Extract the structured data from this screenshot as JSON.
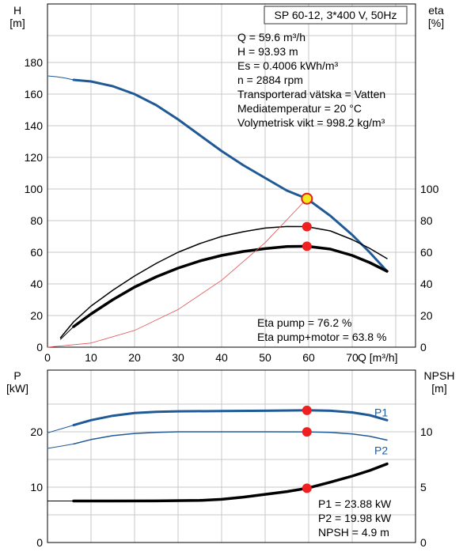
{
  "chart_data": [
    {
      "type": "line",
      "title": "SP 60-12, 3*400 V, 50Hz",
      "xlabel": "Q [m³/h]",
      "ylabel_left": [
        "H",
        "[m]"
      ],
      "ylabel_right": [
        "eta",
        "[%]"
      ],
      "xlim": [
        0,
        80
      ],
      "ylim_left": [
        0,
        200
      ],
      "ylim_right": [
        0,
        200
      ],
      "xticks": [
        0,
        10,
        20,
        30,
        40,
        50,
        60,
        70
      ],
      "xtick_labels": [
        "0",
        "10",
        "20",
        "30",
        "40",
        "50",
        "60",
        "70"
      ],
      "xlabel_tick": "Q [m³/h]",
      "yticks_left": [
        0,
        20,
        40,
        60,
        80,
        100,
        120,
        140,
        160,
        180
      ],
      "yticks_right": [
        0,
        20,
        40,
        60,
        80,
        100
      ],
      "grid": true,
      "info_lines": [
        "Q = 59.6 m³/h",
        "H = 93.93 m",
        "Es = 0.4006 kWh/m³",
        "n = 2884 rpm",
        "Transporterad vätska = Vatten",
        "Mediatemperatur = 20 °C",
        "Volymetrisk vikt = 998.2 kg/m³"
      ],
      "result_lines": [
        "Eta pump = 76.2 %",
        "Eta pump+motor = 63.8 %"
      ],
      "series": [
        {
          "key": "H",
          "color": "#1f5a96",
          "width": 3,
          "axis": "left",
          "x": [
            6,
            10,
            15,
            20,
            25,
            30,
            35,
            40,
            45,
            50,
            55,
            59.6,
            65,
            70,
            74,
            78
          ],
          "y": [
            169,
            168,
            165,
            160,
            153,
            144,
            134,
            124,
            115,
            107,
            99,
            93.9,
            83,
            71,
            60,
            48
          ]
        },
        {
          "key": "H-ext",
          "color": "#1f5a96",
          "width": 1,
          "axis": "left",
          "x": [
            0,
            2,
            4,
            6
          ],
          "y": [
            171.5,
            171,
            170.2,
            169
          ]
        },
        {
          "key": "eta-pump",
          "color": "#000000",
          "width": 1.5,
          "axis": "right",
          "x": [
            3,
            6,
            10,
            15,
            20,
            25,
            30,
            35,
            40,
            45,
            50,
            55,
            59.6,
            65,
            70,
            74,
            78
          ],
          "y": [
            6,
            16,
            26,
            36,
            45,
            53,
            60,
            65.5,
            70,
            73,
            75.3,
            76.3,
            76.2,
            73.5,
            68,
            62.5,
            56
          ]
        },
        {
          "key": "eta-pump-motor",
          "color": "#000000",
          "width": 3.5,
          "axis": "right",
          "x": [
            6,
            10,
            15,
            20,
            25,
            30,
            35,
            40,
            45,
            50,
            55,
            59.6,
            65,
            70,
            74,
            78
          ],
          "y": [
            13,
            21,
            30,
            38,
            44.5,
            50,
            54.5,
            58,
            60.5,
            62.3,
            63.6,
            63.8,
            62,
            58,
            53.5,
            48
          ]
        },
        {
          "key": "eta-ext",
          "color": "#000000",
          "width": 1,
          "axis": "right",
          "x": [
            3,
            4.5,
            6
          ],
          "y": [
            5,
            9,
            13
          ]
        },
        {
          "key": "system",
          "color": "#e05050",
          "width": 0.8,
          "axis": "left",
          "x": [
            0,
            10,
            20,
            30,
            40,
            50,
            59.6
          ],
          "y": [
            0,
            2.6,
            10.6,
            23.8,
            42.3,
            66.1,
            93.9
          ]
        }
      ],
      "markers": [
        {
          "x": 59.6,
          "y": 76.2,
          "axis": "right",
          "fill": "#ee2020",
          "stroke": "#ee2020"
        },
        {
          "x": 59.6,
          "y": 63.8,
          "axis": "right",
          "fill": "#ee2020",
          "stroke": "#ee2020"
        },
        {
          "x": 59.6,
          "y": 93.9,
          "axis": "left",
          "fill": "#f5e81c",
          "stroke": "#e02020"
        }
      ]
    },
    {
      "type": "line",
      "xlabel": "",
      "ylabel_left": [
        "P",
        "[kW]"
      ],
      "ylabel_right": [
        "NPSH",
        "[m]"
      ],
      "xlim": [
        0,
        80
      ],
      "ylim_left": [
        0,
        28
      ],
      "ylim_right": [
        0,
        14
      ],
      "yticks_left": [
        0,
        10,
        20
      ],
      "yticks_right": [
        0,
        5,
        10
      ],
      "grid": true,
      "result_lines": [
        "P1 = 23.88 kW",
        "P2 = 19.98 kW",
        "NPSH = 4.9 m"
      ],
      "series": [
        {
          "key": "P1",
          "name": "P1",
          "color": "#1f5a96",
          "width": 3,
          "axis": "left",
          "x": [
            6,
            10,
            15,
            20,
            25,
            30,
            40,
            50,
            59.6,
            65,
            70,
            74,
            78
          ],
          "y": [
            21.2,
            22.1,
            22.9,
            23.4,
            23.6,
            23.7,
            23.75,
            23.8,
            23.88,
            23.8,
            23.5,
            23.0,
            22.1
          ]
        },
        {
          "key": "P1-ext",
          "color": "#1f5a96",
          "width": 1,
          "axis": "left",
          "x": [
            0,
            3,
            6
          ],
          "y": [
            19.8,
            20.5,
            21.2
          ]
        },
        {
          "key": "P2",
          "name": "P2",
          "color": "#1f5a96",
          "width": 1.5,
          "axis": "left",
          "x": [
            6,
            10,
            15,
            20,
            25,
            30,
            40,
            50,
            59.6,
            65,
            70,
            74,
            78
          ],
          "y": [
            17.8,
            18.6,
            19.3,
            19.7,
            19.9,
            20.0,
            20.0,
            20.0,
            19.98,
            19.9,
            19.6,
            19.2,
            18.5
          ]
        },
        {
          "key": "P2-ext",
          "color": "#1f5a96",
          "width": 1,
          "axis": "left",
          "x": [
            0,
            3,
            6
          ],
          "y": [
            17.0,
            17.4,
            17.8
          ]
        },
        {
          "key": "NPSH",
          "color": "#000000",
          "width": 3.5,
          "axis": "right",
          "x": [
            6,
            15,
            25,
            35,
            40,
            45,
            50,
            55,
            59.6,
            65,
            70,
            74,
            78
          ],
          "y": [
            3.75,
            3.75,
            3.76,
            3.8,
            3.9,
            4.1,
            4.35,
            4.6,
            4.9,
            5.45,
            6.0,
            6.5,
            7.1
          ]
        },
        {
          "key": "NPSH-ext",
          "color": "#000000",
          "width": 1,
          "axis": "right",
          "x": [
            0,
            6
          ],
          "y": [
            3.75,
            3.75
          ]
        }
      ],
      "markers": [
        {
          "x": 59.6,
          "y": 23.88,
          "axis": "left",
          "fill": "#ee2020",
          "stroke": "#ee2020"
        },
        {
          "x": 59.6,
          "y": 19.98,
          "axis": "left",
          "fill": "#ee2020",
          "stroke": "#ee2020"
        },
        {
          "x": 59.6,
          "y": 4.9,
          "axis": "right",
          "fill": "#ee2020",
          "stroke": "#ee2020"
        }
      ]
    }
  ]
}
